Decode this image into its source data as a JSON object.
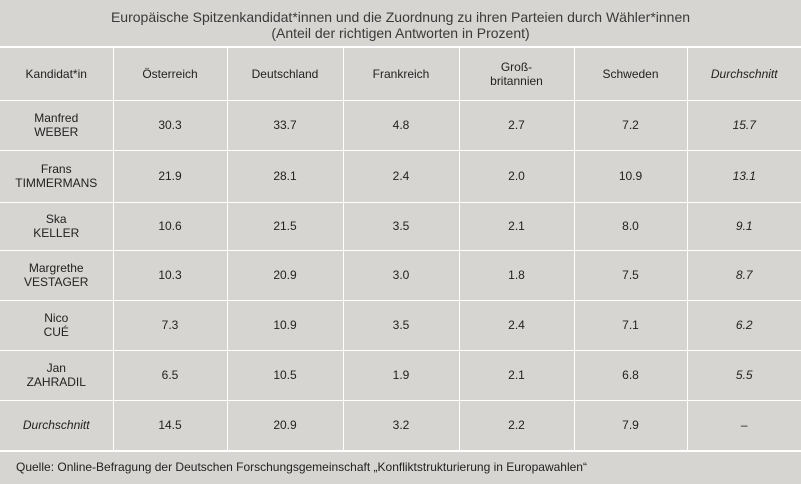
{
  "title": [
    "Europäische Spitzenkandidat*innen und die Zuordnung zu ihren Parteien durch Wähler*innen",
    "(Anteil der richtigen Antworten in Prozent)"
  ],
  "table": {
    "header": [
      [
        "Kandidat*in"
      ],
      [
        "Österreich"
      ],
      [
        "Deutschland"
      ],
      [
        "Frankreich"
      ],
      [
        "Groß-",
        "britannien"
      ],
      [
        "Schweden"
      ],
      [
        "Durchschnitt"
      ]
    ],
    "rows": [
      {
        "name": [
          "Manfred",
          "WEBER"
        ],
        "values": [
          "30.3",
          "33.7",
          "4.8",
          "2.7",
          "7.2",
          "15.7"
        ]
      },
      {
        "name": [
          "Frans",
          "TIMMERMANS"
        ],
        "values": [
          "21.9",
          "28.1",
          "2.4",
          "2.0",
          "10.9",
          "13.1"
        ]
      },
      {
        "name": [
          "Ska",
          "KELLER"
        ],
        "values": [
          "10.6",
          "21.5",
          "3.5",
          "2.1",
          "8.0",
          "9.1"
        ]
      },
      {
        "name": [
          "Margrethe",
          "VESTAGER"
        ],
        "values": [
          "10.3",
          "20.9",
          "3.0",
          "1.8",
          "7.5",
          "8.7"
        ]
      },
      {
        "name": [
          "Nico",
          "CUÉ"
        ],
        "values": [
          "7.3",
          "10.9",
          "3.5",
          "2.4",
          "7.1",
          "6.2"
        ]
      },
      {
        "name": [
          "Jan",
          "ZAHRADIL"
        ],
        "values": [
          "6.5",
          "10.5",
          "1.9",
          "2.1",
          "6.8",
          "5.5"
        ]
      },
      {
        "name": [
          "Durchschnitt"
        ],
        "values": [
          "14.5",
          "20.9",
          "3.2",
          "2.2",
          "7.9",
          "–"
        ]
      }
    ]
  },
  "source": "Quelle: Online-Befragung der Deutschen Forschungsgemeinschaft „Konfliktstrukturierung in Europawahlen“"
}
